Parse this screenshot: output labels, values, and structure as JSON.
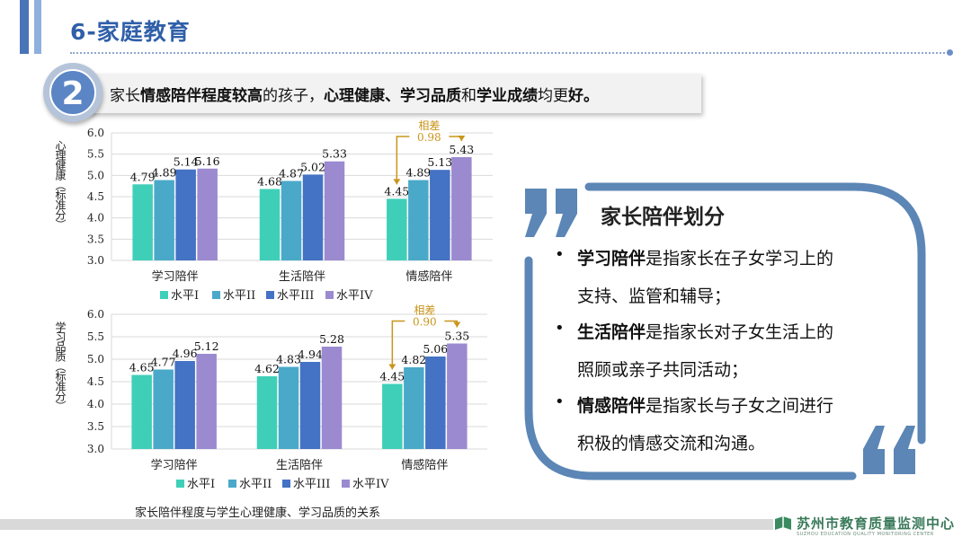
{
  "header": {
    "title": "6-家庭教育"
  },
  "banner": {
    "number": "2",
    "segments": [
      {
        "text": "家长",
        "bold": false
      },
      {
        "text": "情感陪伴程度较高",
        "bold": true
      },
      {
        "text": "的孩子，",
        "bold": false
      },
      {
        "text": "心理健康、学习品质",
        "bold": true
      },
      {
        "text": "和",
        "bold": false
      },
      {
        "text": "学业成绩",
        "bold": true
      },
      {
        "text": "均更",
        "bold": false
      },
      {
        "text": "好。",
        "bold": true
      }
    ]
  },
  "chart_data": [
    {
      "type": "bar",
      "ylabel": "心理健康（标准分）",
      "ylim": [
        3.0,
        6.0
      ],
      "yticks": [
        "3.0",
        "3.5",
        "4.0",
        "4.5",
        "5.0",
        "5.5",
        "6.0"
      ],
      "categories": [
        "学习陪伴",
        "生活陪伴",
        "情感陪伴"
      ],
      "series": [
        {
          "name": "水平I",
          "values": [
            4.79,
            4.68,
            4.45
          ]
        },
        {
          "name": "水平II",
          "values": [
            4.89,
            4.87,
            4.89
          ]
        },
        {
          "name": "水平III",
          "values": [
            5.14,
            5.02,
            5.13
          ]
        },
        {
          "name": "水平IV",
          "values": [
            5.16,
            5.33,
            5.43
          ]
        }
      ],
      "data_labels": [
        [
          "4.79",
          "4.68",
          "4.45"
        ],
        [
          "4.89",
          "4.87",
          "4.89"
        ],
        [
          "5.14",
          "5.02",
          "5.13"
        ],
        [
          "5.16",
          "5.33",
          "5.43"
        ]
      ],
      "annotation": {
        "label": "相差",
        "value": "0.98"
      },
      "legend": "bottom"
    },
    {
      "type": "bar",
      "ylabel": "学习品质（标准分）",
      "ylim": [
        3.0,
        6.0
      ],
      "yticks": [
        "3.0",
        "3.5",
        "4.0",
        "4.5",
        "5.0",
        "5.5",
        "6.0"
      ],
      "categories": [
        "学习陪伴",
        "生活陪伴",
        "情感陪伴"
      ],
      "series": [
        {
          "name": "水平I",
          "values": [
            4.65,
            4.62,
            4.45
          ]
        },
        {
          "name": "水平II",
          "values": [
            4.77,
            4.83,
            4.82
          ]
        },
        {
          "name": "水平III",
          "values": [
            4.96,
            4.94,
            5.06
          ]
        },
        {
          "name": "水平IV",
          "values": [
            5.12,
            5.28,
            5.35
          ]
        }
      ],
      "data_labels": [
        [
          "4.65",
          "4.62",
          "4.45"
        ],
        [
          "4.77",
          "4.83",
          "4.82"
        ],
        [
          "4.96",
          "4.94",
          "5.06"
        ],
        [
          "5.12",
          "5.28",
          "5.35"
        ]
      ],
      "annotation": {
        "label": "相差",
        "value": "0.90"
      },
      "legend": "bottom"
    }
  ],
  "colors": [
    "#3fcfb9",
    "#4aa9c9",
    "#4472c4",
    "#9b8ad0"
  ],
  "caption": "家长陪伴程度与学生心理健康、学习品质的关系",
  "panel": {
    "title": "家长陪伴划分",
    "items": [
      {
        "term": "学习陪伴",
        "line1": "是指家长在子女学习上的",
        "line2": "支持、监管和辅导；"
      },
      {
        "term": "生活陪伴",
        "line1": "是指家长对子女生活上的",
        "line2": "照顾或亲子共同活动；"
      },
      {
        "term": "情感陪伴",
        "line1": "是指家长与子女之间进行",
        "line2": "积极的情感交流和沟通。"
      }
    ]
  },
  "footer": {
    "org": "苏州市教育质量监测中心",
    "org_en": "SUZHOU EDUCATION QUALITY MONITORING CENTER"
  }
}
